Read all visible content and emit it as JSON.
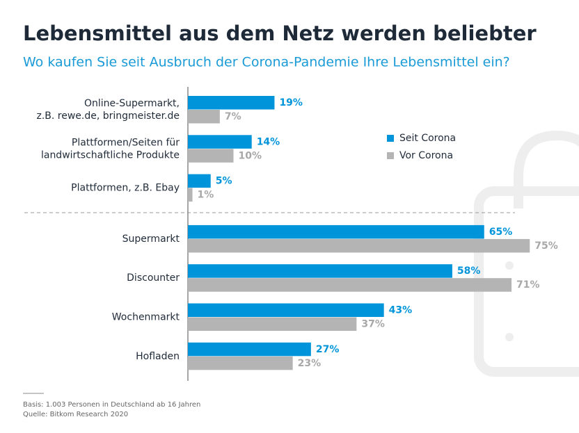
{
  "chart_data": {
    "type": "hbar",
    "title": "Lebensmittel aus dem Netz werden beliebter",
    "subtitle": "Wo kaufen Sie seit Ausbruch der Corona-Pandemie Ihre Lebensmittel ein?",
    "categories": [
      [
        "Online-Supermarkt,",
        "z.B. rewe.de, bringmeister.de"
      ],
      [
        "Plattformen/Seiten für",
        "landwirtschaftliche Produkte"
      ],
      [
        "Plattformen, z.B. Ebay"
      ],
      [
        "Supermarkt"
      ],
      [
        "Discounter"
      ],
      [
        "Wochenmarkt"
      ],
      [
        "Hofladen"
      ]
    ],
    "series": [
      {
        "name": "Seit Corona",
        "color": "#0095db",
        "values": [
          19,
          14,
          5,
          65,
          58,
          43,
          27
        ],
        "value_labels": [
          "19%",
          "14%",
          "5%",
          "65%",
          "58%",
          "43%",
          "27%"
        ]
      },
      {
        "name": "Vor Corona",
        "color": "#b4b4b4",
        "values": [
          7,
          10,
          1,
          75,
          71,
          37,
          23
        ],
        "value_labels": [
          "7%",
          "10%",
          "1%",
          "75%",
          "71%",
          "37%",
          "23%"
        ]
      }
    ],
    "notes": [
      "Basis: 1.003 Personen in Deutschland ab 16 Jahren",
      "Quelle: Bitkom Research 2020"
    ]
  }
}
